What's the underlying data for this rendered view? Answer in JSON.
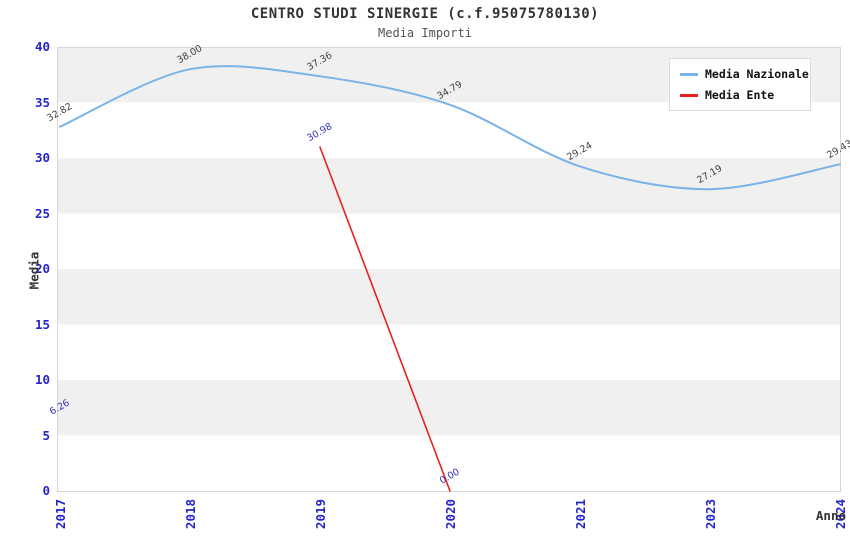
{
  "header": {
    "title": "CENTRO STUDI SINERGIE (c.f.95075780130)",
    "subtitle": "Media Importi"
  },
  "chart_data": {
    "type": "line",
    "title": "CENTRO STUDI SINERGIE (c.f.95075780130)",
    "subtitle": "Media Importi",
    "xlabel": "Anno",
    "ylabel": "Media",
    "categories": [
      "2017",
      "2018",
      "2019",
      "2020",
      "2021",
      "2023",
      "2024"
    ],
    "series": [
      {
        "name": "Media Nazionale",
        "color": "#7ab3e8",
        "label_color": "#404040",
        "smooth": true,
        "values": [
          32.82,
          38.0,
          37.36,
          34.79,
          29.24,
          27.19,
          29.43
        ]
      },
      {
        "name": "Media Ente",
        "color": "#e42222",
        "label_color": "#3333bb",
        "smooth": false,
        "values": [
          6.26,
          null,
          30.98,
          0.0,
          null,
          null,
          null
        ]
      }
    ],
    "ylim": [
      0,
      40
    ],
    "ytick_step": 5,
    "yticks": [
      0,
      5,
      10,
      15,
      20,
      25,
      30,
      35,
      40
    ],
    "grid": "alternating-horizontal-bands",
    "band_color": "#f0f0f0",
    "plot_border_color": "#d6d6d6",
    "tick_label_color": "#2424cc",
    "legend_position": "top-right",
    "data_label_decimals": 2
  }
}
